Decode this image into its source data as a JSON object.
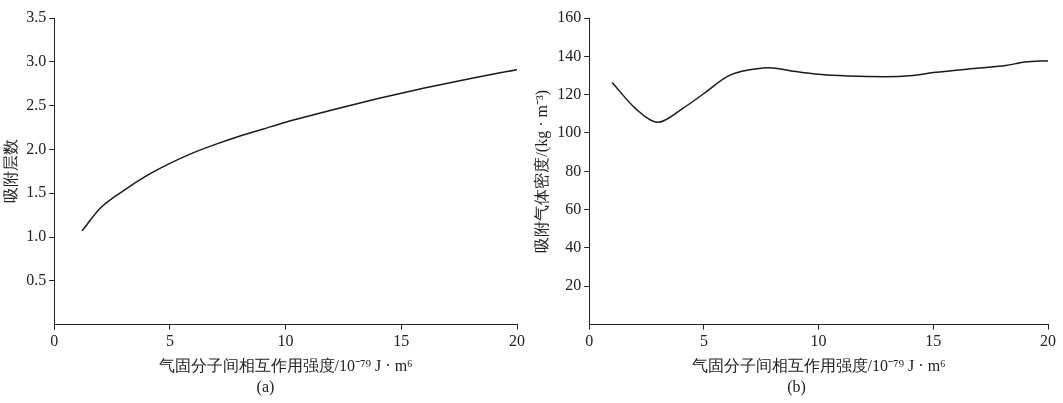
{
  "chart_data": [
    {
      "type": "line",
      "xlabel": "气固分子间相互作用强度/10⁻⁷⁹ J · m⁶",
      "ylabel": "吸附层数",
      "annotations": [
        "(a)"
      ],
      "x": [
        1.2,
        2,
        3,
        4,
        5,
        6,
        7,
        8,
        9,
        10,
        12,
        14,
        16,
        18,
        20
      ],
      "series": [
        {
          "color": "#1a1a1a",
          "values": [
            1.07,
            1.33,
            1.53,
            1.7,
            1.84,
            1.96,
            2.06,
            2.15,
            2.23,
            2.31,
            2.45,
            2.58,
            2.7,
            2.81,
            2.91
          ]
        }
      ],
      "xlim": [
        0,
        20
      ],
      "xticks": [
        0,
        5,
        10,
        15,
        20
      ],
      "ylim": [
        0,
        3.5
      ],
      "yticks": [
        0.5,
        {
          "value": 1,
          "label": "1.0"
        },
        1.5,
        {
          "value": 2,
          "label": "2.0"
        },
        2.5,
        {
          "value": 3,
          "label": "3.0"
        },
        3.5
      ],
      "grid": false,
      "legend": false,
      "marker": "none",
      "line_style": "solid"
    },
    {
      "type": "line",
      "xlabel": "气固分子间相互作用强度/10⁻⁷⁹ J · m⁶",
      "ylabel": "吸附气体密度/(kg · m⁻³)",
      "annotations": [
        "(b)"
      ],
      "x": [
        1.0,
        2.0,
        3.0,
        4.1,
        5.0,
        6.05,
        7.0,
        7.85,
        8.8,
        10,
        11.3,
        12.9,
        14.1,
        15,
        17,
        18.15,
        19,
        20
      ],
      "series": [
        {
          "color": "#1a1a1a",
          "values": [
            126.4,
            113,
            105.6,
            113,
            120.6,
            129.7,
            133,
            134,
            132.4,
            130.6,
            129.7,
            129.3,
            130,
            131.5,
            133.9,
            135.2,
            137,
            137.7
          ]
        }
      ],
      "xlim": [
        0,
        20
      ],
      "xticks": [
        0,
        5,
        10,
        15,
        20
      ],
      "ylim": [
        0,
        160
      ],
      "yticks": [
        20,
        40,
        60,
        80,
        100,
        120,
        140,
        160
      ],
      "grid": false,
      "legend": false,
      "marker": "none",
      "line_style": "solid"
    }
  ]
}
